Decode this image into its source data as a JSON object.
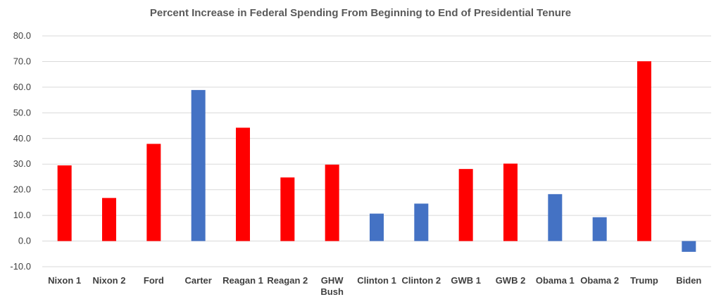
{
  "chart_data": {
    "type": "bar",
    "title": "Percent Increase in Federal Spending From Beginning to End of Presidential Tenure",
    "xlabel": "",
    "ylabel": "",
    "ylim": [
      -10,
      80
    ],
    "yticks": [
      "-10.0",
      "0.0",
      "10.0",
      "20.0",
      "30.0",
      "40.0",
      "50.0",
      "60.0",
      "70.0",
      "80.0"
    ],
    "grid": true,
    "categories": [
      [
        "Nixon 1"
      ],
      [
        "Nixon 2"
      ],
      [
        "Ford"
      ],
      [
        "Carter"
      ],
      [
        "Reagan 1"
      ],
      [
        "Reagan 2"
      ],
      [
        "GHW",
        "Bush"
      ],
      [
        "Clinton 1"
      ],
      [
        "Clinton 2"
      ],
      [
        "GWB 1"
      ],
      [
        "GWB 2"
      ],
      [
        "Obama 1"
      ],
      [
        "Obama 2"
      ],
      [
        "Trump"
      ],
      [
        "Biden"
      ]
    ],
    "values": [
      29.5,
      16.8,
      37.9,
      58.9,
      44.2,
      24.8,
      29.8,
      10.7,
      14.6,
      28.1,
      30.2,
      18.3,
      9.3,
      70.1,
      -4.2
    ],
    "bar_colors": [
      "#ff0000",
      "#ff0000",
      "#ff0000",
      "#4472c4",
      "#ff0000",
      "#ff0000",
      "#ff0000",
      "#4472c4",
      "#4472c4",
      "#ff0000",
      "#ff0000",
      "#4472c4",
      "#4472c4",
      "#ff0000",
      "#4472c4"
    ],
    "colors": {
      "republican": "#ff0000",
      "democrat": "#4472c4",
      "grid": "#d9d9d9"
    }
  }
}
